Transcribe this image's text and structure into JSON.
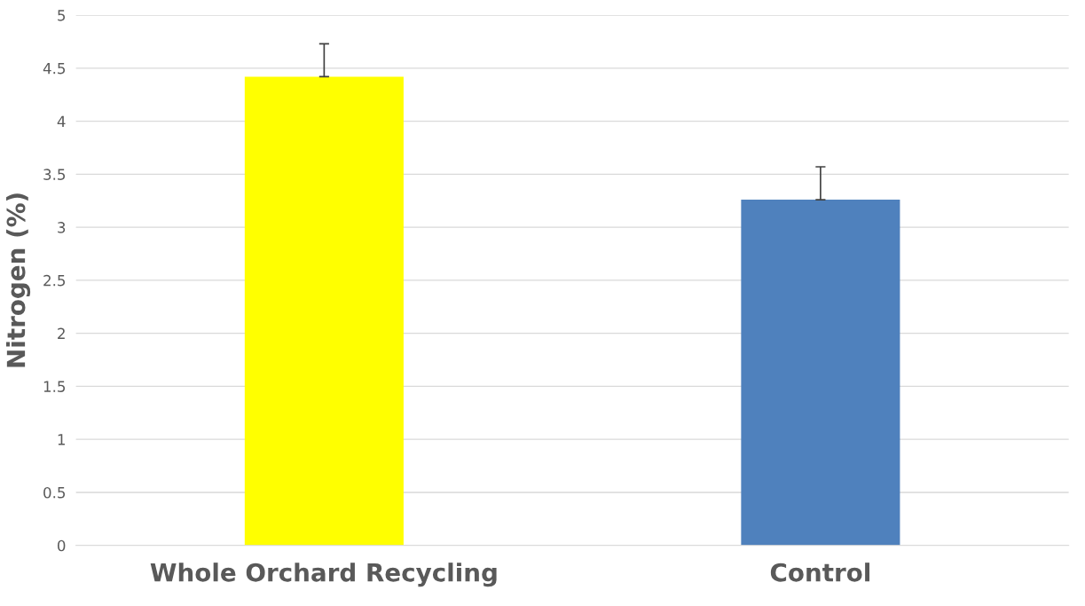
{
  "chart_data": {
    "type": "bar",
    "ylabel": "Nitrogen (%)",
    "categories": [
      "Whole Orchard Recycling",
      "Control"
    ],
    "values": [
      4.42,
      3.26
    ],
    "colors": [
      "#ffff00",
      "#4f81bd"
    ],
    "errors": [
      [
        4.42,
        4.73
      ],
      [
        3.26,
        3.57
      ]
    ],
    "ylim": [
      0,
      5
    ],
    "yticks": [
      0,
      0.5,
      1,
      1.5,
      2,
      2.5,
      3,
      3.5,
      4,
      4.5,
      5
    ],
    "grid": "y",
    "legend": false
  }
}
